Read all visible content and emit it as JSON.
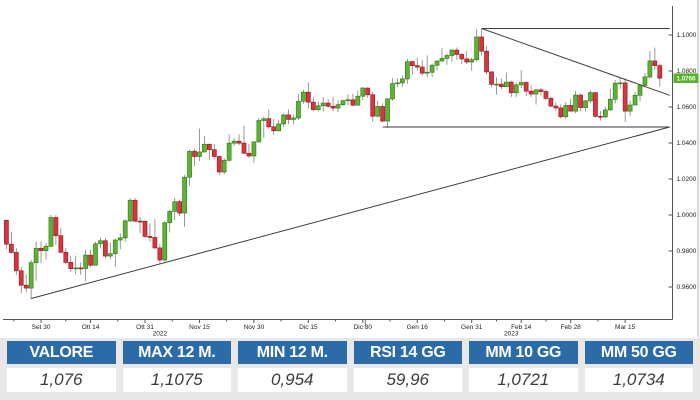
{
  "chart": {
    "yticks": [
      {
        "label": "1.1000",
        "value": 1.1
      },
      {
        "label": "1.0800",
        "value": 1.08
      },
      {
        "label": "1.0600",
        "value": 1.06
      },
      {
        "label": "1.0400",
        "value": 1.04
      },
      {
        "label": "1.0200",
        "value": 1.02
      },
      {
        "label": "1.0000",
        "value": 1.0
      },
      {
        "label": "0.9800",
        "value": 0.98
      },
      {
        "label": "0.9600",
        "value": 0.96
      }
    ],
    "xticks": [
      {
        "label": "Set 30",
        "i": 7
      },
      {
        "label": "Ott 14",
        "i": 17
      },
      {
        "label": "Ott 31",
        "i": 28
      },
      {
        "label": "Nov 15",
        "i": 39
      },
      {
        "label": "Nov 30",
        "i": 50
      },
      {
        "label": "Dic 15",
        "i": 61
      },
      {
        "label": "Dic 30",
        "i": 72
      },
      {
        "label": "Gen 16",
        "i": 83
      },
      {
        "label": "Gen 31",
        "i": 94
      },
      {
        "label": "Feb 14",
        "i": 104
      },
      {
        "label": "Feb 28",
        "i": 114
      },
      {
        "label": "Mar 15",
        "i": 125
      }
    ],
    "year_labels": [
      {
        "label": "2022",
        "i": 31
      },
      {
        "label": "2023",
        "i": 102
      }
    ],
    "current_price_label": "1.0760",
    "colors": {
      "candle_up_fill": "#5eb234",
      "candle_up_stroke": "#35821c",
      "candle_down_fill": "#d8353f",
      "candle_down_stroke": "#9e1f27",
      "wick": "#808080",
      "trendline": "#3c3c3c",
      "axis": "#555555",
      "price_tag_bg": "#58b32a",
      "price_tag_text": "#ffffff",
      "axis_text": "#222222"
    }
  },
  "chart_data": {
    "type": "candlestick",
    "ohlc_format": [
      "open",
      "high",
      "low",
      "close"
    ],
    "y_axis_range": [
      0.9536,
      1.1033
    ],
    "grid": false,
    "last_price": 1.076,
    "candles": [
      [
        0.997,
        0.9975,
        0.981,
        0.9838
      ],
      [
        0.9838,
        0.9907,
        0.9785,
        0.9792
      ],
      [
        0.9792,
        0.9815,
        0.9667,
        0.969
      ],
      [
        0.969,
        0.9709,
        0.9565,
        0.961
      ],
      [
        0.961,
        0.967,
        0.9571,
        0.9594
      ],
      [
        0.9594,
        0.975,
        0.9536,
        0.9735
      ],
      [
        0.9735,
        0.9853,
        0.9634,
        0.9815
      ],
      [
        0.9815,
        0.9854,
        0.9732,
        0.9802
      ],
      [
        0.9802,
        0.9844,
        0.9752,
        0.9826
      ],
      [
        0.9826,
        1.0,
        0.982,
        0.9986
      ],
      [
        0.9986,
        1.0,
        0.9835,
        0.9885
      ],
      [
        0.9885,
        0.9926,
        0.9787,
        0.9793
      ],
      [
        0.9793,
        0.9817,
        0.9726,
        0.9737
      ],
      [
        0.9737,
        0.9774,
        0.9682,
        0.9702
      ],
      [
        0.9702,
        0.9774,
        0.967,
        0.9706
      ],
      [
        0.9706,
        0.9736,
        0.9668,
        0.9703
      ],
      [
        0.9703,
        0.9807,
        0.9632,
        0.9777
      ],
      [
        0.9777,
        0.9807,
        0.9709,
        0.9721
      ],
      [
        0.9721,
        0.9851,
        0.9721,
        0.984
      ],
      [
        0.984,
        0.9875,
        0.9813,
        0.9857
      ],
      [
        0.9857,
        0.9873,
        0.9757,
        0.9772
      ],
      [
        0.9772,
        0.9845,
        0.9755,
        0.9785
      ],
      [
        0.9785,
        0.987,
        0.9712,
        0.9861
      ],
      [
        0.9861,
        0.9899,
        0.9808,
        0.9873
      ],
      [
        0.9873,
        0.9976,
        0.985,
        0.9967
      ],
      [
        0.9967,
        1.0093,
        0.996,
        1.0082
      ],
      [
        1.0082,
        1.0094,
        0.9958,
        0.9966
      ],
      [
        0.9966,
        0.999,
        0.99,
        0.9965
      ],
      [
        0.9965,
        0.9968,
        0.9872,
        0.9881
      ],
      [
        0.9881,
        0.9953,
        0.9853,
        0.9875
      ],
      [
        0.9875,
        0.9976,
        0.9812,
        0.9817
      ],
      [
        0.9817,
        0.984,
        0.973,
        0.975
      ],
      [
        0.975,
        0.9966,
        0.9741,
        0.9957
      ],
      [
        0.9957,
        1.003,
        0.9903,
        1.002
      ],
      [
        1.002,
        1.0096,
        0.9971,
        1.0074
      ],
      [
        1.0074,
        1.0086,
        0.9993,
        1.0011
      ],
      [
        1.0011,
        1.0222,
        0.9935,
        1.021
      ],
      [
        1.021,
        1.0364,
        1.0163,
        1.0354
      ],
      [
        1.0354,
        1.0368,
        1.0271,
        1.0325
      ],
      [
        1.0325,
        1.048,
        1.03,
        1.035
      ],
      [
        1.035,
        1.0438,
        1.0348,
        1.0393
      ],
      [
        1.0393,
        1.0395,
        1.0305,
        1.0363
      ],
      [
        1.0363,
        1.0395,
        1.031,
        1.0325
      ],
      [
        1.0325,
        1.033,
        1.0222,
        1.0239
      ],
      [
        1.0239,
        1.0316,
        1.0226,
        1.0304
      ],
      [
        1.0304,
        1.0448,
        1.0296,
        1.0399
      ],
      [
        1.0399,
        1.0428,
        1.0382,
        1.041
      ],
      [
        1.041,
        1.0448,
        1.0387,
        1.0399
      ],
      [
        1.0399,
        1.0497,
        1.034,
        1.0343
      ],
      [
        1.0343,
        1.0394,
        1.0319,
        1.0328
      ],
      [
        1.0328,
        1.041,
        1.029,
        1.0406
      ],
      [
        1.0406,
        1.0539,
        1.0402,
        1.0525
      ],
      [
        1.0525,
        1.0545,
        1.0427,
        1.0535
      ],
      [
        1.0535,
        1.0585,
        1.048,
        1.049
      ],
      [
        1.049,
        1.0533,
        1.0443,
        1.0468
      ],
      [
        1.0468,
        1.053,
        1.0463,
        1.0506
      ],
      [
        1.0506,
        1.0563,
        1.0489,
        1.0556
      ],
      [
        1.0556,
        1.0587,
        1.0505,
        1.0531
      ],
      [
        1.0531,
        1.0557,
        1.0503,
        1.0539
      ],
      [
        1.0539,
        1.0672,
        1.0528,
        1.0632
      ],
      [
        1.0632,
        1.0695,
        1.0618,
        1.0682
      ],
      [
        1.0682,
        1.0736,
        1.0594,
        1.0627
      ],
      [
        1.0627,
        1.0655,
        1.0577,
        1.0585
      ],
      [
        1.0585,
        1.063,
        1.0575,
        1.0607
      ],
      [
        1.0607,
        1.0655,
        1.0575,
        1.0622
      ],
      [
        1.0622,
        1.0645,
        1.0596,
        1.0604
      ],
      [
        1.0604,
        1.0657,
        1.0576,
        1.0594
      ],
      [
        1.0594,
        1.0636,
        1.0572,
        1.0613
      ],
      [
        1.0613,
        1.064,
        1.0605,
        1.0635
      ],
      [
        1.0635,
        1.067,
        1.061,
        1.064
      ],
      [
        1.064,
        1.0673,
        1.0604,
        1.061
      ],
      [
        1.061,
        1.069,
        1.0609,
        1.066
      ],
      [
        1.066,
        1.0713,
        1.0638,
        1.0705
      ],
      [
        1.0705,
        1.071,
        1.065,
        1.0668
      ],
      [
        1.0668,
        1.0683,
        1.0519,
        1.0549
      ],
      [
        1.0549,
        1.0635,
        1.0542,
        1.0603
      ],
      [
        1.0603,
        1.0621,
        1.0515,
        1.0522
      ],
      [
        1.0522,
        1.065,
        1.0483,
        1.0645
      ],
      [
        1.0645,
        1.0761,
        1.0634,
        1.073
      ],
      [
        1.073,
        1.0758,
        1.0711,
        1.0734
      ],
      [
        1.0734,
        1.0776,
        1.0711,
        1.0756
      ],
      [
        1.0756,
        1.0868,
        1.0729,
        1.0852
      ],
      [
        1.0852,
        1.0858,
        1.078,
        1.083
      ],
      [
        1.083,
        1.0874,
        1.0802,
        1.0822
      ],
      [
        1.0822,
        1.086,
        1.0775,
        1.0788
      ],
      [
        1.0788,
        1.0887,
        1.0766,
        1.0793
      ],
      [
        1.0793,
        1.084,
        1.0766,
        1.0832
      ],
      [
        1.0832,
        1.0858,
        1.0802,
        1.0856
      ],
      [
        1.0856,
        1.0927,
        1.0848,
        1.087
      ],
      [
        1.087,
        1.0898,
        1.0835,
        1.0886
      ],
      [
        1.0886,
        1.0923,
        1.0851,
        1.0916
      ],
      [
        1.0916,
        1.093,
        1.0861,
        1.0892
      ],
      [
        1.0892,
        1.09,
        1.0838,
        1.0867
      ],
      [
        1.0867,
        1.0913,
        1.084,
        1.085
      ],
      [
        1.085,
        1.0875,
        1.0802,
        1.0863
      ],
      [
        1.0863,
        1.1033,
        1.0852,
        1.0989
      ],
      [
        1.0989,
        1.1033,
        1.0885,
        1.091
      ],
      [
        1.091,
        1.0938,
        1.0782,
        1.0795
      ],
      [
        1.0795,
        1.0798,
        1.0709,
        1.0726
      ],
      [
        1.0726,
        1.0766,
        1.0669,
        1.0727
      ],
      [
        1.0727,
        1.076,
        1.0701,
        1.0713
      ],
      [
        1.0713,
        1.0791,
        1.0711,
        1.0738
      ],
      [
        1.0738,
        1.0746,
        1.0656,
        1.0679
      ],
      [
        1.0679,
        1.0736,
        1.0656,
        1.0723
      ],
      [
        1.0723,
        1.0804,
        1.0704,
        1.0736
      ],
      [
        1.0736,
        1.0744,
        1.0661,
        1.0688
      ],
      [
        1.0688,
        1.0721,
        1.0655,
        1.0672
      ],
      [
        1.0672,
        1.07,
        1.0613,
        1.0695
      ],
      [
        1.0695,
        1.0705,
        1.0664,
        1.0686
      ],
      [
        1.0686,
        1.0697,
        1.0636,
        1.0648
      ],
      [
        1.0648,
        1.0658,
        1.0599,
        1.0605
      ],
      [
        1.0605,
        1.0625,
        1.0577,
        1.0595
      ],
      [
        1.0595,
        1.0615,
        1.0536,
        1.0546
      ],
      [
        1.0546,
        1.0626,
        1.0533,
        1.0609
      ],
      [
        1.0609,
        1.0645,
        1.0575,
        1.0577
      ],
      [
        1.0577,
        1.0691,
        1.0565,
        1.0666
      ],
      [
        1.0666,
        1.0674,
        1.0577,
        1.0597
      ],
      [
        1.0597,
        1.0639,
        1.0576,
        1.0634
      ],
      [
        1.0634,
        1.0694,
        1.0622,
        1.068
      ],
      [
        1.068,
        1.0683,
        1.0542,
        1.0548
      ],
      [
        1.0548,
        1.0578,
        1.0524,
        1.0545
      ],
      [
        1.0545,
        1.0601,
        1.0537,
        1.0584
      ],
      [
        1.0584,
        1.0701,
        1.0577,
        1.0643
      ],
      [
        1.0643,
        1.0749,
        1.062,
        1.0732
      ],
      [
        1.0732,
        1.076,
        1.07,
        1.0734
      ],
      [
        1.0734,
        1.076,
        1.0516,
        1.0577
      ],
      [
        1.0577,
        1.0635,
        1.0551,
        1.0611
      ],
      [
        1.0611,
        1.0685,
        1.0611,
        1.0665
      ],
      [
        1.0665,
        1.0727,
        1.0632,
        1.072
      ],
      [
        1.072,
        1.0789,
        1.071,
        1.0767
      ],
      [
        1.0767,
        1.0912,
        1.0755,
        1.0856
      ],
      [
        1.0856,
        1.093,
        1.0805,
        1.083
      ],
      [
        1.083,
        1.084,
        1.0713,
        1.076
      ]
    ],
    "trendlines": [
      {
        "name": "ascending-support",
        "from": {
          "index": 5,
          "price": 0.9536
        },
        "to": {
          "index": 134,
          "price": 1.0489
        }
      },
      {
        "name": "horizontal-support",
        "from": {
          "index": 76,
          "price": 1.0489
        },
        "to": {
          "index": 134,
          "price": 1.0489
        }
      },
      {
        "name": "horizontal-resistance",
        "from": {
          "index": 96,
          "price": 1.1036
        },
        "to": {
          "index": 134,
          "price": 1.1036
        }
      },
      {
        "name": "descending-resistance",
        "from": {
          "index": 96,
          "price": 1.1036
        },
        "to": {
          "index": 134,
          "price": 1.0665
        }
      }
    ]
  },
  "table": {
    "columns": [
      {
        "label": "VALORE",
        "value": "1,076"
      },
      {
        "label": "MAX 12 M.",
        "value": "1,1075"
      },
      {
        "label": "MIN 12 M.",
        "value": "0,954"
      },
      {
        "label": "RSI 14 GG",
        "value": "59,96"
      },
      {
        "label": "MM 10 GG",
        "value": "1,0721"
      },
      {
        "label": "MM 50 GG",
        "value": "1,0734"
      }
    ]
  }
}
